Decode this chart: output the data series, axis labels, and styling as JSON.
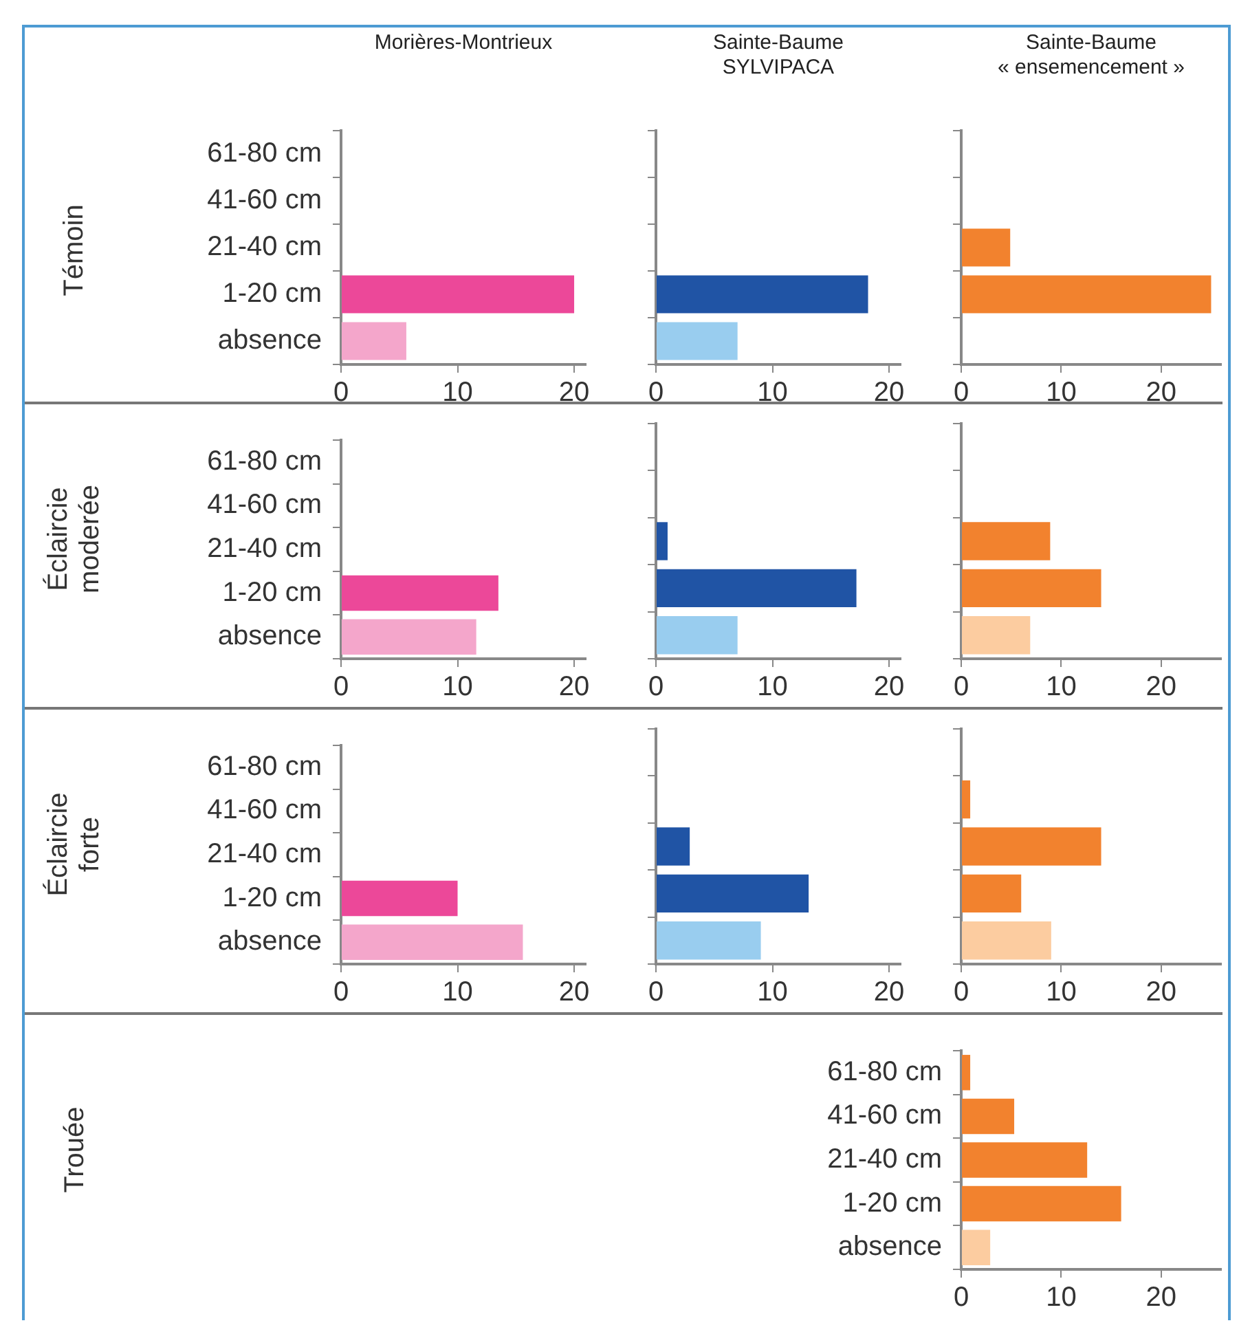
{
  "chart_data": [
    {
      "type": "bar",
      "orientation": "horizontal",
      "title": "Morières-Montrieux",
      "ylabel": "Témoin",
      "categories": [
        "61-80 cm",
        "41-60 cm",
        "21-40 cm",
        "1-20 cm",
        "absence"
      ],
      "values": [
        0,
        0,
        0,
        20,
        5.6
      ],
      "colors": [
        "#ec4899",
        "#ec4899",
        "#ec4899",
        "#ec4899",
        "#f4a6cb"
      ],
      "xlim": [
        0,
        21
      ],
      "xticks": [
        0,
        10,
        20
      ]
    },
    {
      "type": "bar",
      "orientation": "horizontal",
      "title": "Sainte-Baume SYLVIPACA",
      "categories": [
        null,
        null,
        null,
        null,
        null
      ],
      "values": [
        0,
        0,
        0,
        18.2,
        7
      ],
      "colors": [
        "#2054a5",
        "#2054a5",
        "#2054a5",
        "#2054a5",
        "#99cdef"
      ],
      "xlim": [
        0,
        21
      ],
      "xticks": [
        0,
        10,
        20
      ],
      "tick_labels": "x"
    },
    {
      "type": "bar",
      "orientation": "horizontal",
      "title": "Sainte-Baume « ensemencement »",
      "categories": [
        null,
        null,
        null,
        null,
        null
      ],
      "values": [
        0,
        0,
        4.9,
        25,
        0
      ],
      "colors": [
        "#f2822e",
        "#f2822e",
        "#f2822e",
        "#f2822e",
        "#fccca0"
      ],
      "xlim": [
        0,
        26
      ],
      "xticks": [
        0,
        10,
        20
      ],
      "tick_labels": "x"
    },
    {
      "type": "bar",
      "orientation": "horizontal",
      "ylabel": "Éclaircie moderée",
      "categories": [
        "61-80 cm",
        "41-60 cm",
        "21-40 cm",
        "1-20 cm",
        "absence"
      ],
      "values": [
        0,
        0,
        0,
        13.5,
        11.6
      ],
      "colors": [
        "#ec4899",
        "#ec4899",
        "#ec4899",
        "#ec4899",
        "#f4a6cb"
      ],
      "xlim": [
        0,
        21
      ],
      "xticks": [
        0,
        10,
        20
      ]
    },
    {
      "type": "bar",
      "orientation": "horizontal",
      "categories": [
        null,
        null,
        null,
        null,
        null
      ],
      "values": [
        0,
        0,
        1,
        17.2,
        7
      ],
      "colors": [
        "#2054a5",
        "#2054a5",
        "#2054a5",
        "#2054a5",
        "#99cdef"
      ],
      "xlim": [
        0,
        21
      ],
      "xticks": [
        0,
        10,
        20
      ],
      "tick_labels": "x"
    },
    {
      "type": "bar",
      "orientation": "horizontal",
      "categories": [
        null,
        null,
        null,
        null,
        null
      ],
      "values": [
        0,
        0,
        8.9,
        14,
        6.9
      ],
      "colors": [
        "#f2822e",
        "#f2822e",
        "#f2822e",
        "#f2822e",
        "#fccca0"
      ],
      "xlim": [
        0,
        26
      ],
      "xticks": [
        0,
        10,
        20
      ],
      "tick_labels": "x"
    },
    {
      "type": "bar",
      "orientation": "horizontal",
      "ylabel": "Éclaircie forte",
      "categories": [
        "61-80 cm",
        "41-60 cm",
        "21-40 cm",
        "1-20 cm",
        "absence"
      ],
      "values": [
        0,
        0,
        0,
        10,
        15.6
      ],
      "colors": [
        "#ec4899",
        "#ec4899",
        "#ec4899",
        "#ec4899",
        "#f4a6cb"
      ],
      "xlim": [
        0,
        21
      ],
      "xticks": [
        0,
        10,
        20
      ]
    },
    {
      "type": "bar",
      "orientation": "horizontal",
      "categories": [
        null,
        null,
        null,
        null,
        null
      ],
      "values": [
        0,
        0,
        2.9,
        13.1,
        9
      ],
      "colors": [
        "#2054a5",
        "#2054a5",
        "#2054a5",
        "#2054a5",
        "#99cdef"
      ],
      "xlim": [
        0,
        21
      ],
      "xticks": [
        0,
        10,
        20
      ],
      "tick_labels": "x"
    },
    {
      "type": "bar",
      "orientation": "horizontal",
      "categories": [
        null,
        null,
        null,
        null,
        null
      ],
      "values": [
        0,
        0.9,
        14,
        6,
        9
      ],
      "colors": [
        "#f2822e",
        "#f2822e",
        "#f2822e",
        "#f2822e",
        "#fccca0"
      ],
      "xlim": [
        0,
        26
      ],
      "xticks": [
        0,
        10,
        20
      ],
      "tick_labels": "x"
    },
    {
      "type": "bar",
      "orientation": "horizontal",
      "ylabel": "Trouée",
      "categories": [
        "61-80 cm",
        "41-60 cm",
        "21-40 cm",
        "1-20 cm",
        "absence"
      ],
      "values": [
        0.9,
        5.3,
        12.6,
        16,
        2.9
      ],
      "colors": [
        "#f2822e",
        "#f2822e",
        "#f2822e",
        "#f2822e",
        "#fccca0"
      ],
      "xlim": [
        0,
        26
      ],
      "xticks": [
        0,
        10,
        20
      ]
    }
  ]
}
